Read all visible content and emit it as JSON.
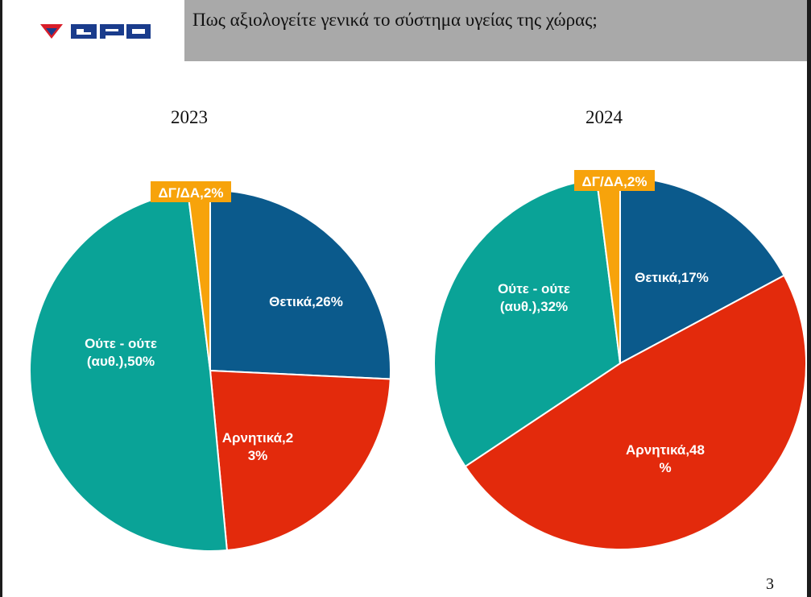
{
  "header": {
    "logo_text": "GPO",
    "title": "Πως αξιολογείτε γενικά το σύστημα υγείας της χώρας;"
  },
  "page_number": "3",
  "colors": {
    "positive": "#0b5a8c",
    "negative": "#e32a0c",
    "neutral": "#0aa397",
    "dkna": "#f7a30b",
    "label_box": "#f7a30b"
  },
  "chart_data": [
    {
      "type": "pie",
      "title": "2023",
      "slices": [
        {
          "label_lines": [
            "Θετικά,26%"
          ],
          "value": 26,
          "color": "#0b5a8c"
        },
        {
          "label_lines": [
            "Αρνητικά,2",
            "3%"
          ],
          "value": 23,
          "color": "#e32a0c"
        },
        {
          "label_lines": [
            "Ούτε - ούτε",
            "(αυθ.),50%"
          ],
          "value": 50,
          "color": "#0aa397"
        },
        {
          "label_lines": [
            "ΔΓ/ΔΑ,2%"
          ],
          "value": 2,
          "color": "#f7a30b"
        }
      ]
    },
    {
      "type": "pie",
      "title": "2024",
      "slices": [
        {
          "label_lines": [
            "Θετικά,17%"
          ],
          "value": 17,
          "color": "#0b5a8c"
        },
        {
          "label_lines": [
            "Αρνητικά,48",
            "%"
          ],
          "value": 48,
          "color": "#e32a0c"
        },
        {
          "label_lines": [
            "Ούτε - ούτε",
            "(αυθ.),32%"
          ],
          "value": 32,
          "color": "#0aa397"
        },
        {
          "label_lines": [
            "ΔΓ/ΔΑ,2%"
          ],
          "value": 2,
          "color": "#f7a30b"
        }
      ]
    }
  ]
}
